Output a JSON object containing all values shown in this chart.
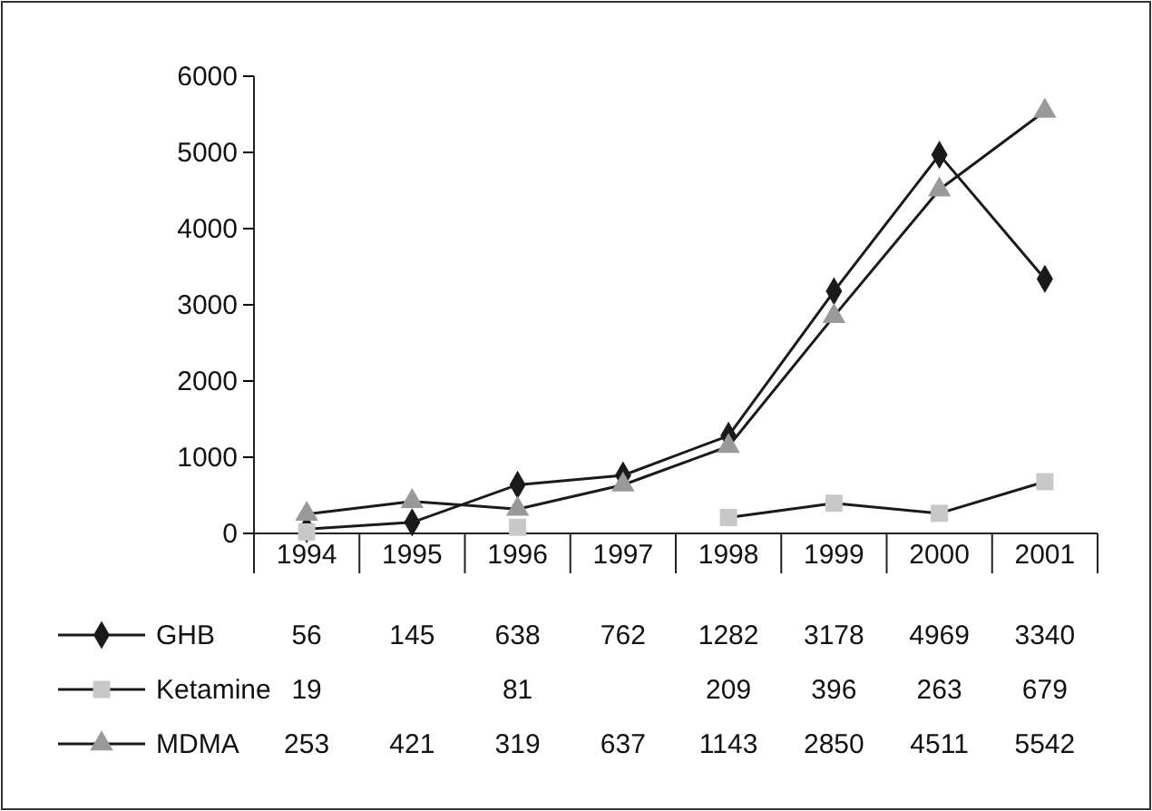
{
  "chart_data": {
    "type": "line",
    "categories": [
      "1994",
      "1995",
      "1996",
      "1997",
      "1998",
      "1999",
      "2000",
      "2001"
    ],
    "series": [
      {
        "name": "GHB",
        "color": "#1a1a1a",
        "marker": "diamond",
        "values": [
          56,
          145,
          638,
          762,
          1282,
          3178,
          4969,
          3340
        ]
      },
      {
        "name": "Ketamine",
        "color": "#c8c8c8",
        "marker": "square",
        "values": [
          19,
          null,
          81,
          null,
          209,
          396,
          263,
          679
        ]
      },
      {
        "name": "MDMA",
        "color": "#999999",
        "marker": "triangle",
        "values": [
          253,
          421,
          319,
          637,
          1143,
          2850,
          4511,
          5542
        ]
      }
    ],
    "ylim": [
      0,
      6000
    ],
    "yticks": [
      0,
      1000,
      2000,
      3000,
      4000,
      5000,
      6000
    ],
    "grid": false,
    "legend": "bottom",
    "data_labels": true
  }
}
